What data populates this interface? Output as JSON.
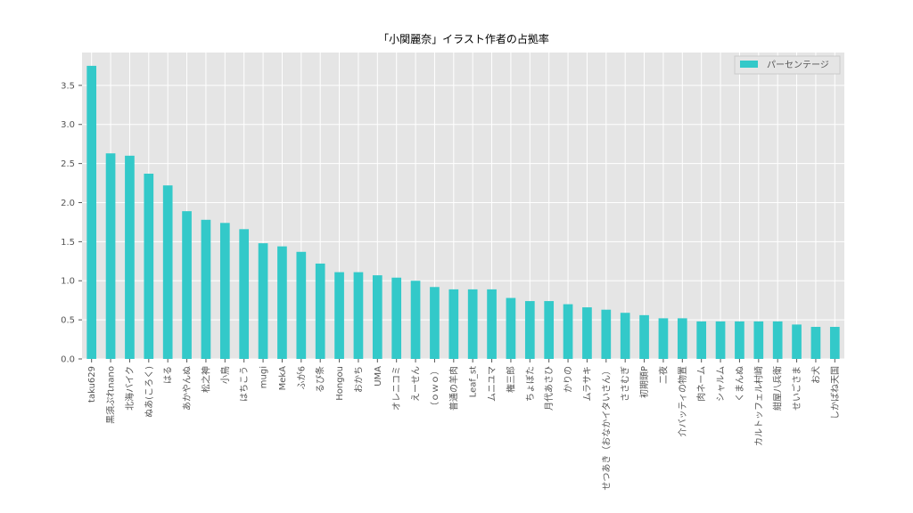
{
  "chart_data": {
    "type": "bar",
    "title": "「小関麗奈」イラスト作者の占拠率",
    "categories": [
      "taku629",
      "黒須ぷれnano",
      "北海バイク",
      "ぬあ(ころく)",
      "はる",
      "あかやんぬ",
      "松之神",
      "小鳥",
      "はちこう",
      "mugi",
      "MekA",
      "ふが6",
      "るび条",
      "Hongou",
      "おかち",
      "UMA",
      "オレニコミ",
      "えーせん",
      "（ｏｗｏ）",
      "普通の羊肉",
      "Leaf_st",
      "ムニユマ",
      "権三郎",
      "ちょぼた",
      "月代あさひ",
      "かりの",
      "ムラサキ",
      "せつあき（おなかイタいさん）",
      "ささむぎ",
      "初期頭P",
      "二夜",
      "介バッティの物置",
      "肉ネーム",
      "シャルム",
      "くまんぬ",
      "カルトッフェル村崎",
      "紺屋八兵衛",
      "せいごさま",
      "お犬",
      "しかばね天国"
    ],
    "series": [
      {
        "name": "パーセンテージ",
        "color": "#33c9c9",
        "values": [
          3.75,
          2.63,
          2.6,
          2.37,
          2.22,
          1.89,
          1.78,
          1.74,
          1.66,
          1.48,
          1.44,
          1.37,
          1.22,
          1.11,
          1.11,
          1.07,
          1.04,
          1.0,
          0.92,
          0.89,
          0.89,
          0.89,
          0.78,
          0.74,
          0.74,
          0.7,
          0.66,
          0.63,
          0.59,
          0.56,
          0.52,
          0.52,
          0.48,
          0.48,
          0.48,
          0.48,
          0.48,
          0.44,
          0.41,
          0.41
        ]
      }
    ],
    "ylim": [
      0,
      3.92
    ],
    "yticks": [
      {
        "value": 0,
        "label": "0.0"
      },
      {
        "value": 0.5,
        "label": "0.5"
      },
      {
        "value": 1,
        "label": "1.0"
      },
      {
        "value": 1.5,
        "label": "1.5"
      },
      {
        "value": 2,
        "label": "2.0"
      },
      {
        "value": 2.5,
        "label": "2.5"
      },
      {
        "value": 3,
        "label": "3.0"
      },
      {
        "value": 3.5,
        "label": "3.5"
      }
    ],
    "grid": true,
    "legend": "upper right"
  }
}
